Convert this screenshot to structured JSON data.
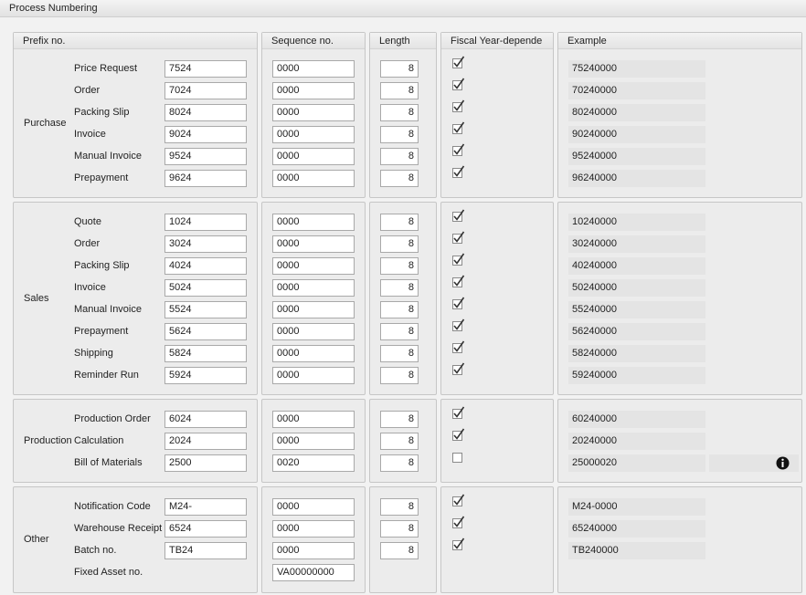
{
  "header": {
    "title": "Process Numbering"
  },
  "columns": [
    "Prefix no.",
    "Sequence no.",
    "Length",
    "Fiscal Year-depende",
    "Example"
  ],
  "groups": [
    {
      "name": "Purchase",
      "rows": [
        {
          "label": "Price Request",
          "prefix": "7524",
          "sequence": "0000",
          "length": "8",
          "fiscal_year": true,
          "example": "75240000"
        },
        {
          "label": "Order",
          "prefix": "7024",
          "sequence": "0000",
          "length": "8",
          "fiscal_year": true,
          "example": "70240000"
        },
        {
          "label": "Packing Slip",
          "prefix": "8024",
          "sequence": "0000",
          "length": "8",
          "fiscal_year": true,
          "example": "80240000"
        },
        {
          "label": "Invoice",
          "prefix": "9024",
          "sequence": "0000",
          "length": "8",
          "fiscal_year": true,
          "example": "90240000"
        },
        {
          "label": "Manual Invoice",
          "prefix": "9524",
          "sequence": "0000",
          "length": "8",
          "fiscal_year": true,
          "example": "95240000"
        },
        {
          "label": "Prepayment",
          "prefix": "9624",
          "sequence": "0000",
          "length": "8",
          "fiscal_year": true,
          "example": "96240000"
        }
      ]
    },
    {
      "name": "Sales",
      "rows": [
        {
          "label": "Quote",
          "prefix": "1024",
          "sequence": "0000",
          "length": "8",
          "fiscal_year": true,
          "example": "10240000"
        },
        {
          "label": "Order",
          "prefix": "3024",
          "sequence": "0000",
          "length": "8",
          "fiscal_year": true,
          "example": "30240000"
        },
        {
          "label": "Packing Slip",
          "prefix": "4024",
          "sequence": "0000",
          "length": "8",
          "fiscal_year": true,
          "example": "40240000"
        },
        {
          "label": "Invoice",
          "prefix": "5024",
          "sequence": "0000",
          "length": "8",
          "fiscal_year": true,
          "example": "50240000"
        },
        {
          "label": "Manual Invoice",
          "prefix": "5524",
          "sequence": "0000",
          "length": "8",
          "fiscal_year": true,
          "example": "55240000"
        },
        {
          "label": "Prepayment",
          "prefix": "5624",
          "sequence": "0000",
          "length": "8",
          "fiscal_year": true,
          "example": "56240000"
        },
        {
          "label": "Shipping",
          "prefix": "5824",
          "sequence": "0000",
          "length": "8",
          "fiscal_year": true,
          "example": "58240000"
        },
        {
          "label": "Reminder Run",
          "prefix": "5924",
          "sequence": "0000",
          "length": "8",
          "fiscal_year": true,
          "example": "59240000"
        }
      ]
    },
    {
      "name": "Production",
      "rows": [
        {
          "label": "Production Order",
          "prefix": "6024",
          "sequence": "0000",
          "length": "8",
          "fiscal_year": true,
          "example": "60240000"
        },
        {
          "label": "Calculation",
          "prefix": "2024",
          "sequence": "0000",
          "length": "8",
          "fiscal_year": true,
          "example": "20240000"
        },
        {
          "label": "Bill of Materials",
          "prefix": "2500",
          "sequence": "0020",
          "length": "8",
          "fiscal_year": false,
          "example": "25000020",
          "info_icon": true
        }
      ]
    },
    {
      "name": "Other",
      "rows": [
        {
          "label": "Notification Code",
          "prefix": "M24-",
          "sequence": "0000",
          "length": "8",
          "fiscal_year": true,
          "example": "M24-0000"
        },
        {
          "label": "Warehouse Receipt",
          "prefix": "6524",
          "sequence": "0000",
          "length": "8",
          "fiscal_year": true,
          "example": "65240000"
        },
        {
          "label": "Batch no.",
          "prefix": "TB24",
          "sequence": "0000",
          "length": "8",
          "fiscal_year": true,
          "example": "TB240000"
        },
        {
          "label": "Fixed Asset no.",
          "sequence": "VA00000000"
        }
      ]
    }
  ]
}
